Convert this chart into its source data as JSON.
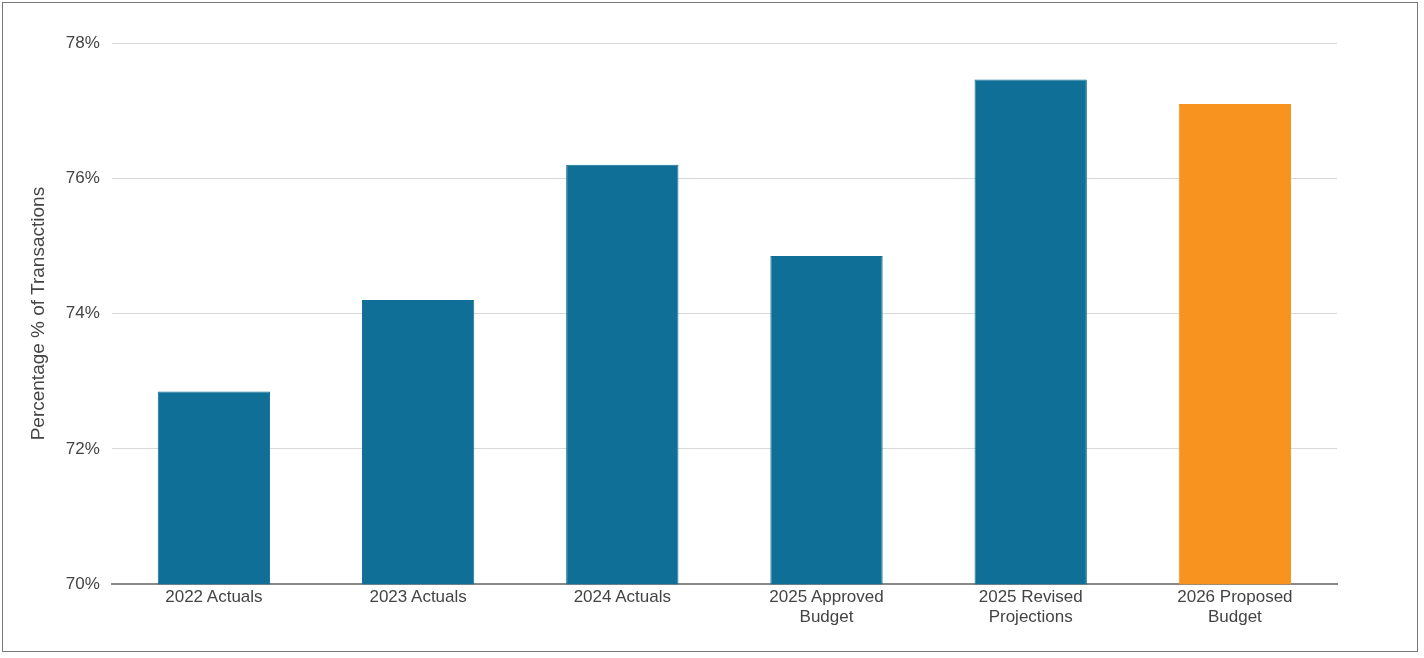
{
  "chart_data": {
    "type": "bar",
    "ylabel": "Percentage % of Transactions",
    "categories": [
      "2022 Actuals",
      "2023 Actuals",
      "2024 Actuals",
      "2025 Approved Budget",
      "2025 Revised Projections",
      "2026 Proposed Budget"
    ],
    "values": [
      72.85,
      74.2,
      76.2,
      74.85,
      77.46,
      77.1
    ],
    "colors": [
      "#0f6f96",
      "#0f6f96",
      "#0f6f96",
      "#0f6f96",
      "#0f6f96",
      "#f7931e"
    ],
    "ylim": [
      70,
      78
    ],
    "yticks": [
      {
        "value": 70,
        "label": "70%"
      },
      {
        "value": 72,
        "label": "72%"
      },
      {
        "value": 74,
        "label": "74%"
      },
      {
        "value": 76,
        "label": "76%"
      },
      {
        "value": 78,
        "label": "78%"
      }
    ],
    "grid": "y",
    "legend": false
  }
}
